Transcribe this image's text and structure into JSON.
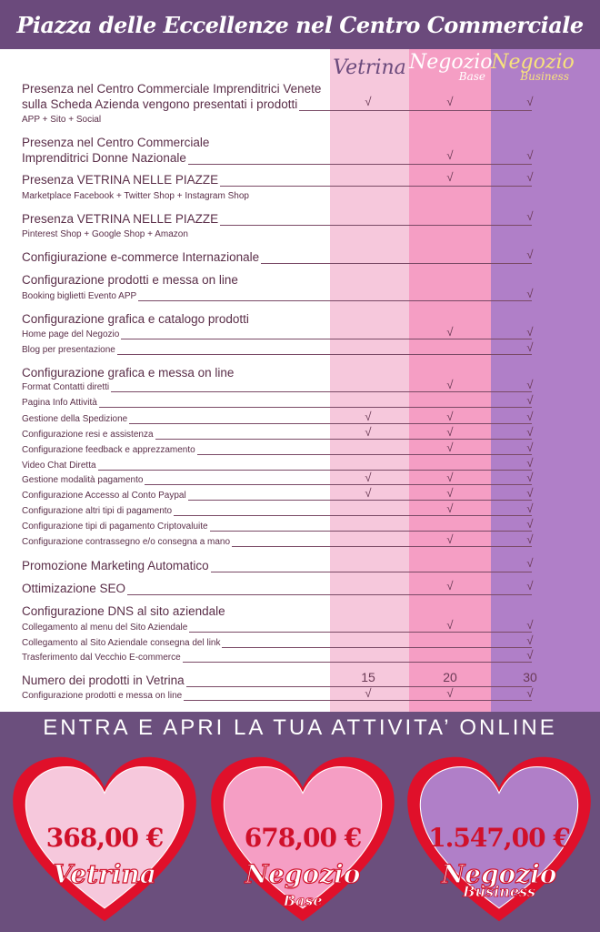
{
  "title": "Piazza delle Eccellenze nel Centro Commerciale",
  "colors": {
    "header": "#6b4a7c",
    "vetrina": "#f6c8dc",
    "base": "#f59ec4",
    "business": "#b07fc8",
    "heart_border": "#e0102a"
  },
  "columns": [
    {
      "title": "Vetrina",
      "subtitle": "",
      "color": "#6b4a7c"
    },
    {
      "title": "Negozio",
      "subtitle": "Base",
      "color": "#ffffff"
    },
    {
      "title": "Negozio",
      "subtitle": "Business",
      "color": "#f7e27c"
    }
  ],
  "rows": [
    {
      "text": "Presenza nel Centro Commerciale Imprenditrici Venete",
      "kind": "main",
      "line": false,
      "marks": [
        "",
        "",
        ""
      ]
    },
    {
      "text": "sulla Scheda Azienda vengono presentati i prodotti",
      "kind": "main",
      "line": true,
      "marks": [
        "√",
        "√",
        "√"
      ]
    },
    {
      "text": "APP + Sito + Social",
      "kind": "sub",
      "line": false,
      "marks": [
        "",
        "",
        ""
      ]
    },
    {
      "text": "Presenza nel Centro Commerciale",
      "kind": "main",
      "line": false,
      "marks": [
        "",
        "",
        ""
      ]
    },
    {
      "text": "Imprenditrici Donne Nazionale",
      "kind": "main",
      "line": true,
      "marks": [
        "",
        "√",
        "√"
      ]
    },
    {
      "text": "Presenza VETRINA NELLE PIAZZE",
      "kind": "main",
      "line": true,
      "marks": [
        "",
        "√",
        "√"
      ]
    },
    {
      "text": "Marketplace Facebook + Twitter Shop + Instagram Shop",
      "kind": "sub",
      "line": false,
      "marks": [
        "",
        "",
        ""
      ]
    },
    {
      "text": "Presenza VETRINA NELLE PIAZZE",
      "kind": "main",
      "line": true,
      "marks": [
        "",
        "",
        "√"
      ]
    },
    {
      "text": "Pinterest Shop + Google Shop + Amazon",
      "kind": "sub",
      "line": false,
      "marks": [
        "",
        "",
        ""
      ]
    },
    {
      "text": "Configiurazione e-commerce Internazionale",
      "kind": "main",
      "line": true,
      "marks": [
        "",
        "",
        "√"
      ]
    },
    {
      "text": "Configurazione prodotti e messa on line",
      "kind": "main",
      "line": false,
      "marks": [
        "",
        "",
        ""
      ]
    },
    {
      "text": "Booking biglietti Evento APP",
      "kind": "sub",
      "line": true,
      "marks": [
        "",
        "",
        "√"
      ]
    },
    {
      "text": "Configurazione grafica e catalogo prodotti",
      "kind": "main",
      "line": false,
      "marks": [
        "",
        "",
        ""
      ]
    },
    {
      "text": "Home page del Negozio",
      "kind": "sub",
      "line": true,
      "marks": [
        "",
        "√",
        "√"
      ]
    },
    {
      "text": "Blog per presentazione",
      "kind": "sub",
      "line": true,
      "marks": [
        "",
        "",
        "√"
      ]
    },
    {
      "text": "Configurazione grafica e messa on line",
      "kind": "main",
      "line": false,
      "marks": [
        "",
        "",
        ""
      ]
    },
    {
      "text": "Format Contatti diretti",
      "kind": "sub",
      "line": true,
      "marks": [
        "",
        "√",
        "√"
      ]
    },
    {
      "text": "Pagina Info Attività",
      "kind": "sub",
      "line": true,
      "marks": [
        "",
        "",
        "√"
      ]
    },
    {
      "text": "Gestione della Spedizione",
      "kind": "sub",
      "line": true,
      "marks": [
        "√",
        "√",
        "√"
      ]
    },
    {
      "text": "Configurazione resi e assistenza",
      "kind": "sub",
      "line": true,
      "marks": [
        "√",
        "√",
        "√"
      ]
    },
    {
      "text": "Configurazione feedback e apprezzamento",
      "kind": "sub",
      "line": true,
      "marks": [
        "",
        "√",
        "√"
      ]
    },
    {
      "text": "Video Chat Diretta",
      "kind": "sub",
      "line": true,
      "marks": [
        "",
        "",
        "√"
      ]
    },
    {
      "text": "Gestione modalità pagamento",
      "kind": "sub",
      "line": true,
      "marks": [
        "√",
        "√",
        "√"
      ]
    },
    {
      "text": "Configurazione Accesso al Conto Paypal",
      "kind": "sub",
      "line": true,
      "marks": [
        "√",
        "√",
        "√"
      ]
    },
    {
      "text": "Configurazione altri tipi di pagamento",
      "kind": "sub",
      "line": true,
      "marks": [
        "",
        "√",
        "√"
      ]
    },
    {
      "text": "Configurazione tipi di pagamento Criptovaluite",
      "kind": "sub",
      "line": true,
      "marks": [
        "",
        "",
        "√"
      ]
    },
    {
      "text": "Configurazione contrassegno e/o consegna a mano",
      "kind": "sub",
      "line": true,
      "marks": [
        "",
        "√",
        "√"
      ]
    },
    {
      "text": "Promozione Marketing Automatico",
      "kind": "main",
      "line": true,
      "marks": [
        "",
        "",
        "√"
      ]
    },
    {
      "text": "Ottimizazione SEO",
      "kind": "main",
      "line": true,
      "marks": [
        "",
        "√",
        "√"
      ]
    },
    {
      "text": "Configurazione DNS al sito aziendale",
      "kind": "main",
      "line": false,
      "marks": [
        "",
        "",
        ""
      ]
    },
    {
      "text": "Collegamento al menu del Sito Aziendale",
      "kind": "sub",
      "line": true,
      "marks": [
        "",
        "√",
        "√"
      ]
    },
    {
      "text": "Collegamento al Sito Aziendale consegna del link",
      "kind": "sub",
      "line": true,
      "marks": [
        "",
        "",
        "√"
      ]
    },
    {
      "text": "Trasferimento dal Vecchio E-commerce",
      "kind": "sub",
      "line": true,
      "marks": [
        "",
        "",
        "√"
      ]
    },
    {
      "text": "Numero dei prodotti in Vetrina",
      "kind": "main",
      "line": true,
      "marks": [
        "15",
        "20",
        "30"
      ]
    },
    {
      "text": "Configurazione prodotti e messa on line",
      "kind": "sub",
      "line": true,
      "marks": [
        "√",
        "√",
        "√"
      ]
    }
  ],
  "cta": "ENTRA E APRI LA TUA ATTIVITA’ ONLINE",
  "plans": [
    {
      "price": "368,00 €",
      "name": "Vetrina",
      "sub": "",
      "fill": "#f6c8dc"
    },
    {
      "price": "678,00 €",
      "name": "Negozio",
      "sub": "Base",
      "fill": "#f59ec4"
    },
    {
      "price": "1.547,00 €",
      "name": "Negozio",
      "sub": "Business",
      "fill": "#b07fc8"
    }
  ]
}
